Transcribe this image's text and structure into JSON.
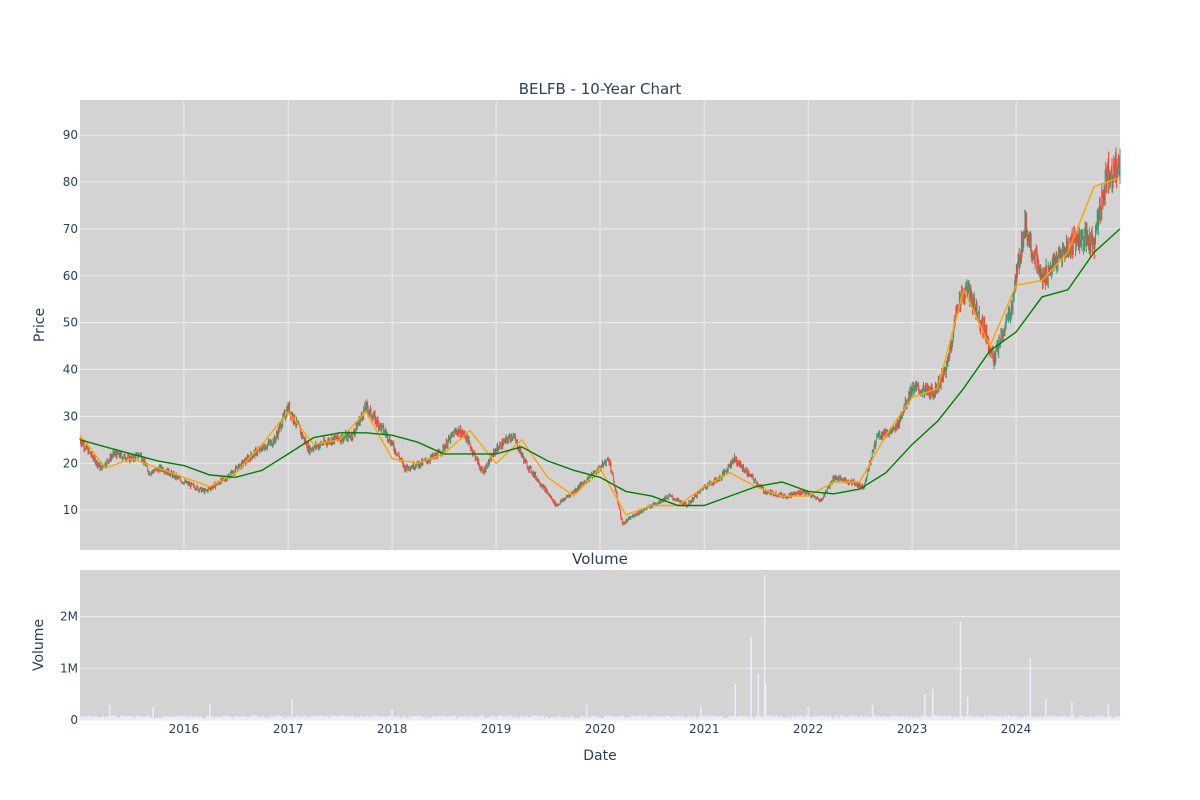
{
  "chart_data": [
    {
      "type": "candlestick",
      "title": "BELFB - 10-Year Chart",
      "ylabel": "Price",
      "ylim": [
        1.5,
        97.5
      ],
      "xlim": [
        "2015-01-01",
        "2024-12-31"
      ],
      "yticks": [
        10,
        20,
        30,
        40,
        50,
        60,
        70,
        80,
        90
      ],
      "colors": {
        "up": "#3d9970",
        "down": "#ff4136",
        "ma_short": "#ffa500",
        "ma_long": "#008000",
        "plot_bg": "#d3d3d3",
        "grid": "#ececec"
      },
      "grid": true,
      "legend": "none",
      "series": [
        {
          "kind": "ohlc",
          "x": [
            "2015-01-01",
            "2015-03-15",
            "2015-05-01",
            "2015-07-01",
            "2015-08-01",
            "2015-09-01",
            "2015-10-15",
            "2016-01-01",
            "2016-03-15",
            "2016-06-01",
            "2016-09-01",
            "2016-11-15",
            "2017-01-01",
            "2017-03-15",
            "2017-06-01",
            "2017-08-15",
            "2017-10-01",
            "2017-12-15",
            "2018-02-15",
            "2018-04-15",
            "2018-06-15",
            "2018-08-15",
            "2018-09-15",
            "2018-11-15",
            "2019-01-01",
            "2019-03-01",
            "2019-04-15",
            "2019-06-15",
            "2019-08-01",
            "2019-10-01",
            "2019-12-15",
            "2020-02-01",
            "2020-03-20",
            "2020-05-01",
            "2020-07-01",
            "2020-09-01",
            "2020-11-01",
            "2021-01-01",
            "2021-03-01",
            "2021-04-15",
            "2021-06-01",
            "2021-08-01",
            "2021-10-15",
            "2021-12-15",
            "2022-02-15",
            "2022-04-01",
            "2022-06-01",
            "2022-07-15",
            "2022-09-01",
            "2022-11-01",
            "2023-01-01",
            "2023-03-15",
            "2023-05-01",
            "2023-06-15",
            "2023-07-15",
            "2023-09-15",
            "2023-10-15",
            "2023-12-15",
            "2024-02-01",
            "2024-04-01",
            "2024-06-01",
            "2024-08-01",
            "2024-10-01",
            "2024-11-15",
            "2024-12-31"
          ],
          "close": [
            25,
            19,
            22,
            21,
            22,
            18,
            19,
            16,
            14,
            17,
            22,
            25,
            32,
            23,
            25,
            26,
            32,
            26,
            19,
            20,
            22,
            27,
            26,
            18,
            23,
            26,
            20,
            15,
            11,
            14,
            18,
            21,
            7,
            9,
            11,
            13,
            11,
            15,
            17,
            21,
            18,
            14,
            13,
            14,
            12,
            17,
            16,
            15,
            26,
            27,
            36,
            35,
            40,
            55,
            57,
            48,
            42,
            53,
            71,
            59,
            64,
            68,
            67,
            82,
            83
          ]
        },
        {
          "kind": "line",
          "name": "MA short",
          "x": [
            "2015-01-01",
            "2015-04-01",
            "2015-07-01",
            "2015-10-01",
            "2016-01-01",
            "2016-04-01",
            "2016-07-01",
            "2016-10-01",
            "2017-01-01",
            "2017-04-01",
            "2017-07-01",
            "2017-10-01",
            "2018-01-01",
            "2018-04-01",
            "2018-07-01",
            "2018-10-01",
            "2019-01-01",
            "2019-04-01",
            "2019-07-01",
            "2019-10-01",
            "2020-01-01",
            "2020-04-01",
            "2020-07-01",
            "2020-10-01",
            "2021-01-01",
            "2021-04-01",
            "2021-07-01",
            "2021-10-01",
            "2022-01-01",
            "2022-04-01",
            "2022-07-01",
            "2022-10-01",
            "2023-01-01",
            "2023-04-01",
            "2023-07-01",
            "2023-10-01",
            "2024-01-01",
            "2024-04-01",
            "2024-07-01",
            "2024-10-01",
            "2024-12-31"
          ],
          "values": [
            26,
            19,
            21,
            19,
            17,
            15,
            18,
            24,
            31,
            24,
            25,
            31,
            21,
            20,
            22,
            27,
            20,
            25,
            17,
            13,
            19,
            9,
            11,
            11,
            15,
            18,
            15,
            13,
            13,
            16,
            16,
            26,
            34,
            36,
            57,
            45,
            58,
            59,
            65,
            79,
            81
          ]
        },
        {
          "kind": "line",
          "name": "MA long",
          "x": [
            "2015-01-01",
            "2015-04-01",
            "2015-07-01",
            "2015-10-01",
            "2016-01-01",
            "2016-04-01",
            "2016-07-01",
            "2016-10-01",
            "2017-01-01",
            "2017-04-01",
            "2017-07-01",
            "2017-10-01",
            "2018-01-01",
            "2018-04-01",
            "2018-07-01",
            "2018-10-01",
            "2019-01-01",
            "2019-04-01",
            "2019-07-01",
            "2019-10-01",
            "2020-01-01",
            "2020-04-01",
            "2020-07-01",
            "2020-10-01",
            "2021-01-01",
            "2021-04-01",
            "2021-07-01",
            "2021-10-01",
            "2022-01-01",
            "2022-04-01",
            "2022-07-01",
            "2022-10-01",
            "2023-01-01",
            "2023-04-01",
            "2023-07-01",
            "2023-10-01",
            "2024-01-01",
            "2024-04-01",
            "2024-07-01",
            "2024-10-01",
            "2024-12-31"
          ],
          "values": [
            25,
            23.5,
            22,
            20.5,
            19.5,
            17.5,
            17,
            18.5,
            22,
            25.5,
            26.5,
            26.5,
            26,
            24.5,
            22,
            22,
            22,
            23.5,
            20.5,
            18.5,
            17,
            14,
            13,
            11,
            11,
            13,
            15,
            16,
            14,
            13.5,
            14.5,
            18,
            24,
            29,
            36,
            44,
            48,
            55.5,
            57,
            65,
            70
          ]
        }
      ]
    },
    {
      "type": "bar",
      "title": "Volume",
      "xlabel": "Date",
      "ylabel": "Volume",
      "ylim": [
        0,
        2900000
      ],
      "yticks": [
        0,
        1000000,
        2000000
      ],
      "ytick_labels": [
        "0",
        "1M",
        "2M"
      ],
      "xticks": [
        "2016",
        "2017",
        "2018",
        "2019",
        "2020",
        "2021",
        "2022",
        "2023",
        "2024"
      ],
      "colors": {
        "bar": "#ebeefa",
        "plot_bg": "#d3d3d3",
        "grid": "#ececec"
      },
      "grid": true,
      "x": [
        "2015-04-15",
        "2015-09-15",
        "2016-04-01",
        "2017-01-15",
        "2018-01-01",
        "2019-11-15",
        "2020-12-20",
        "2021-04-20",
        "2021-06-15",
        "2021-07-10",
        "2021-08-01",
        "2021-08-05",
        "2022-01-01",
        "2022-08-15",
        "2023-02-15",
        "2023-03-15",
        "2023-06-20",
        "2023-07-15",
        "2024-02-20",
        "2024-04-15",
        "2024-07-15",
        "2024-11-20"
      ],
      "values": [
        300000,
        250000,
        300000,
        400000,
        220000,
        300000,
        250000,
        700000,
        1600000,
        900000,
        2800000,
        700000,
        250000,
        300000,
        500000,
        600000,
        1900000,
        450000,
        1200000,
        400000,
        350000,
        300000
      ],
      "baseline": 60000
    }
  ]
}
